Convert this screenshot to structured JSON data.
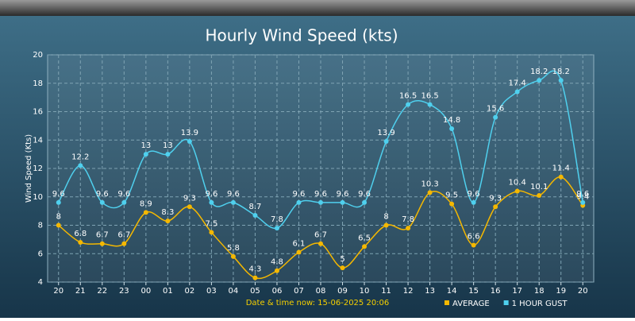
{
  "chart_data": {
    "type": "line",
    "title": "Hourly Wind Speed (kts)",
    "y_label": "Wind Speed (Kts)",
    "footer": "Date & time now: 15-06-2025 20:06",
    "categories": [
      "20",
      "21",
      "22",
      "23",
      "00",
      "01",
      "02",
      "03",
      "04",
      "05",
      "06",
      "07",
      "08",
      "09",
      "10",
      "11",
      "12",
      "13",
      "14",
      "15",
      "16",
      "17",
      "18",
      "19",
      "20"
    ],
    "series": [
      {
        "name": "AVERAGE",
        "color": "#f5b800",
        "values": [
          8,
          6.8,
          6.7,
          6.7,
          8.9,
          8.3,
          9.3,
          7.5,
          5.8,
          4.3,
          4.8,
          6.1,
          6.7,
          5,
          6.5,
          8,
          7.8,
          10.3,
          9.5,
          6.6,
          9.3,
          10.4,
          10.1,
          11.4,
          9.4
        ]
      },
      {
        "name": "1 HOUR GUST",
        "color": "#4fd0ee",
        "values": [
          9.6,
          12.2,
          9.6,
          9.6,
          13,
          13,
          13.9,
          9.6,
          9.6,
          8.7,
          7.8,
          9.6,
          9.6,
          9.6,
          9.6,
          13.9,
          16.5,
          16.5,
          14.8,
          9.6,
          15.6,
          17.4,
          18.2,
          18.2,
          9.6
        ]
      }
    ],
    "ylim": [
      4,
      20
    ],
    "yticks": [
      4,
      6,
      8,
      10,
      12,
      14,
      16,
      18,
      20
    ],
    "grid": true,
    "legend": "bottom-right"
  }
}
